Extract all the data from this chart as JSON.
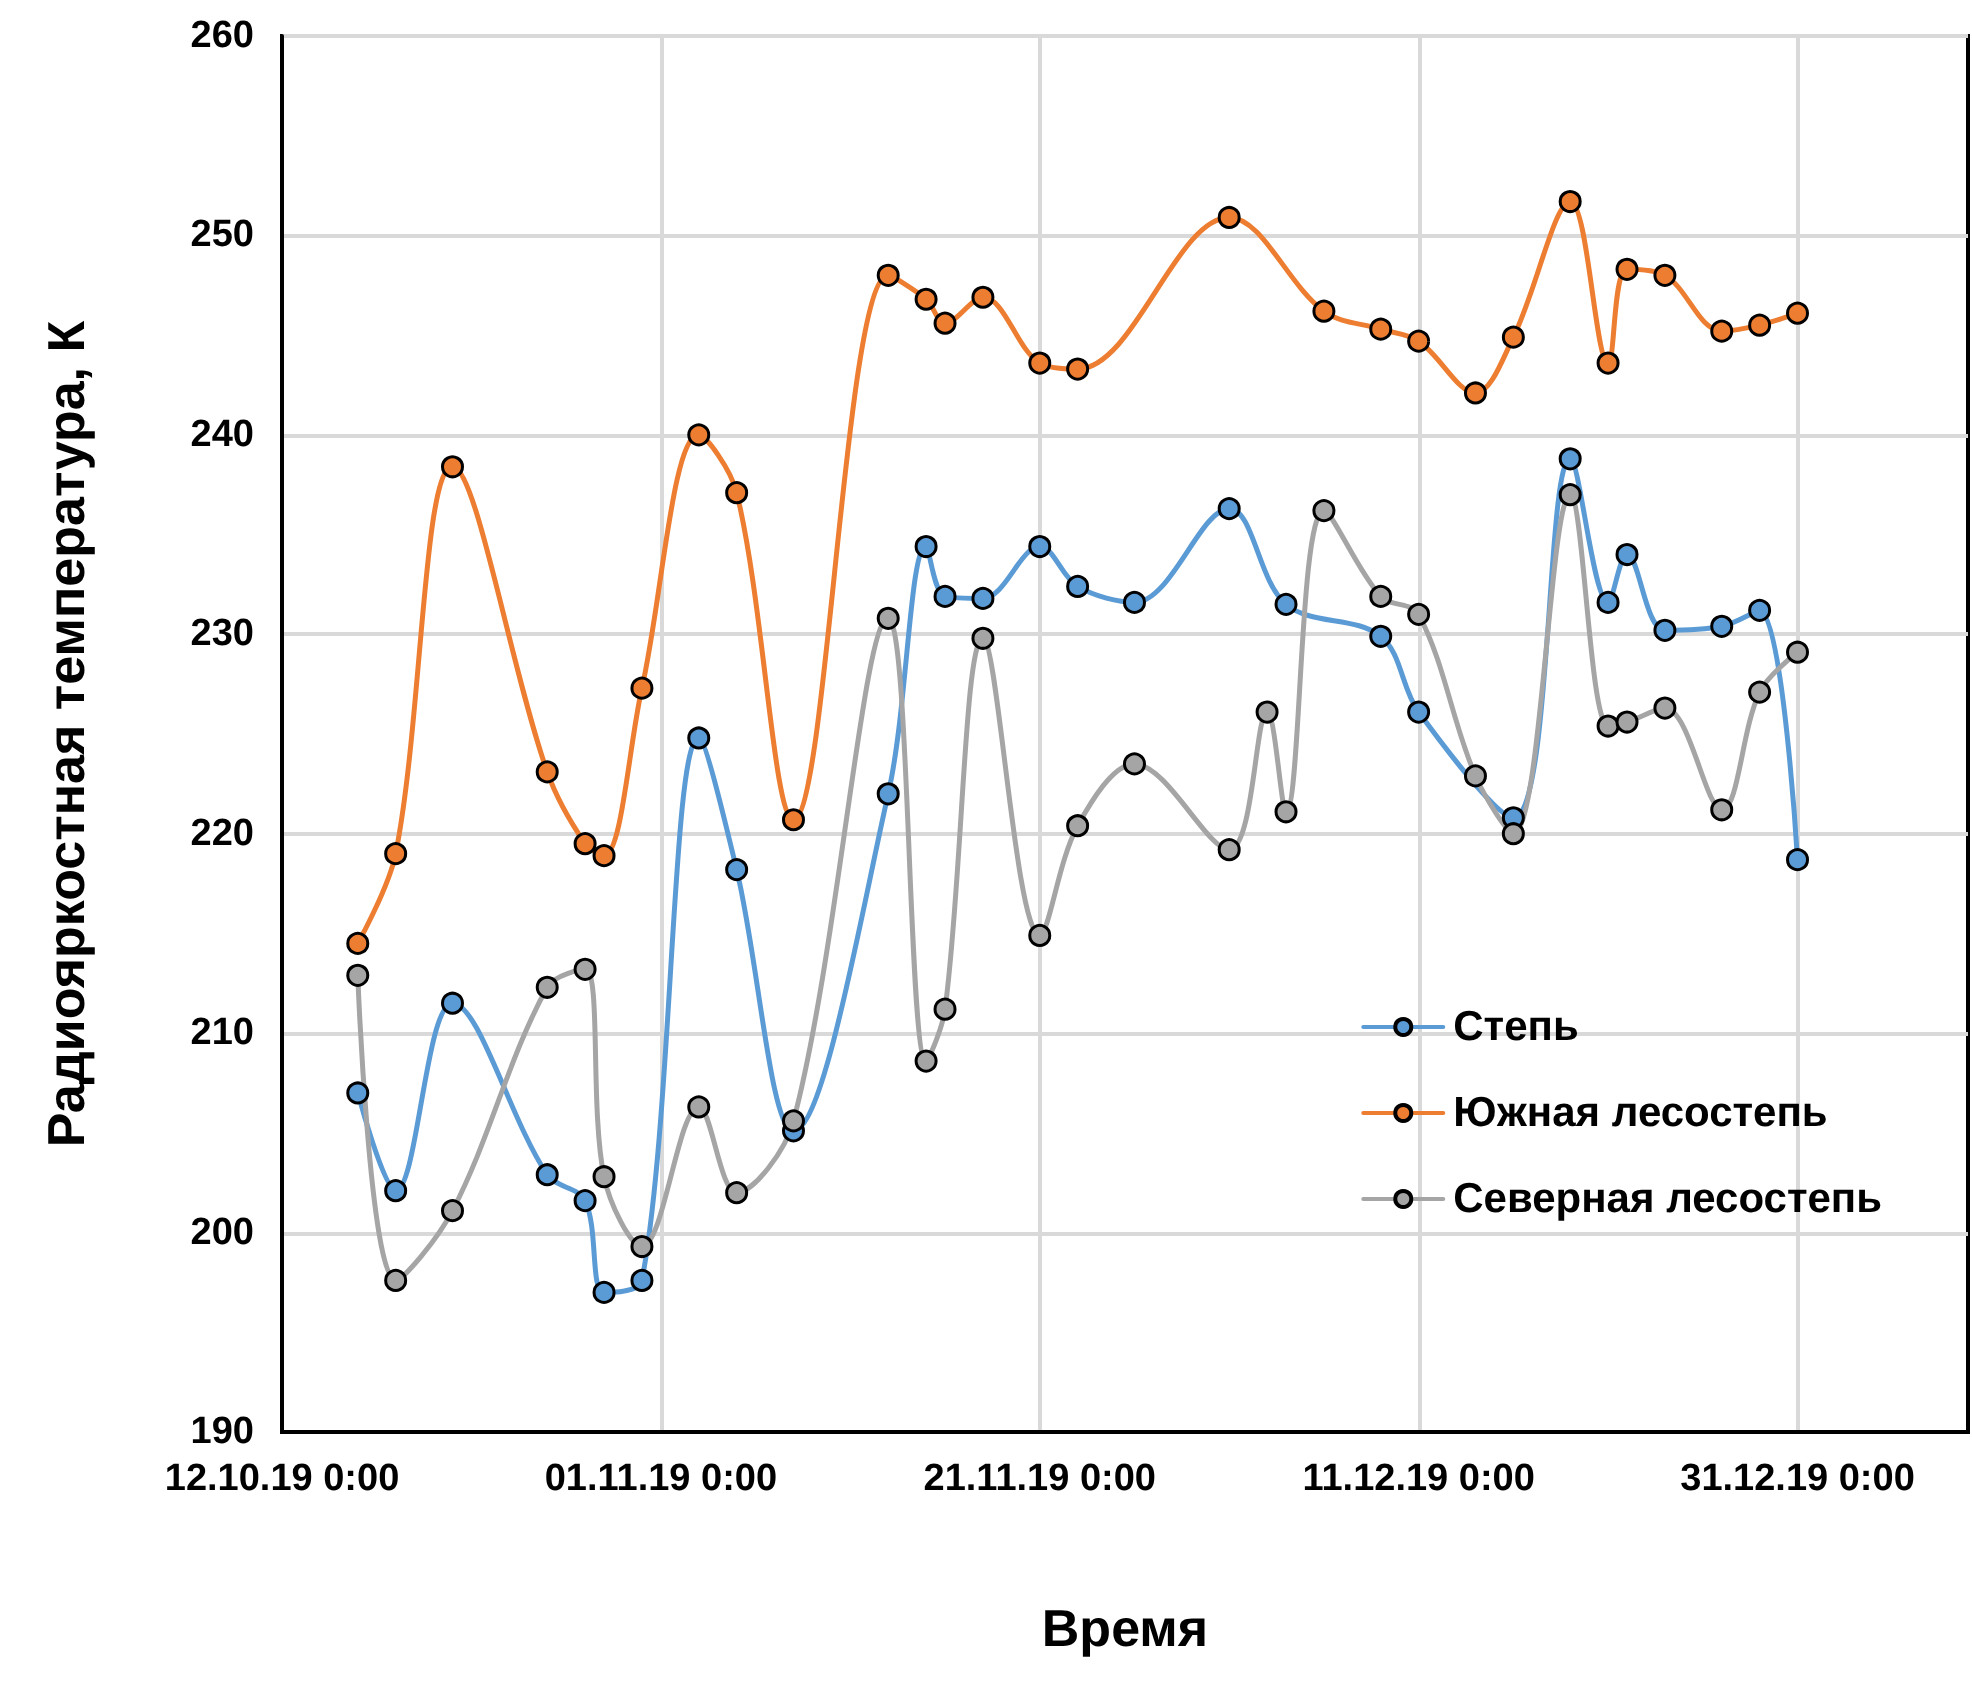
{
  "chart_data": {
    "type": "line",
    "xlabel": "Время",
    "ylabel": "Радиояркостная температура, К",
    "xlim": [
      "2019-10-12",
      "2020-01-09"
    ],
    "ylim": [
      190,
      260
    ],
    "yticks": [
      190,
      200,
      210,
      220,
      230,
      240,
      250,
      260
    ],
    "xticks": [
      {
        "value": "2019-10-12",
        "label": "12.10.19 0:00"
      },
      {
        "value": "2019-11-01",
        "label": "01.11.19 0:00"
      },
      {
        "value": "2019-11-21",
        "label": "21.11.19 0:00"
      },
      {
        "value": "2019-12-11",
        "label": "11.12.19 0:00"
      },
      {
        "value": "2019-12-31",
        "label": "31.12.19 0:00"
      }
    ],
    "grid": true,
    "legend": "right",
    "marker": "circle",
    "line_style": "solid",
    "series": [
      {
        "name": "Степь",
        "color": "#5b9bd5",
        "x": [
          "2019-10-16",
          "2019-10-18",
          "2019-10-21",
          "2019-10-26",
          "2019-10-28",
          "2019-10-29",
          "2019-10-31",
          "2019-11-03",
          "2019-11-05",
          "2019-11-08",
          "2019-11-13",
          "2019-11-15",
          "2019-11-16",
          "2019-11-18",
          "2019-11-21",
          "2019-11-23",
          "2019-11-26",
          "2019-12-01",
          "2019-12-04",
          "2019-12-09",
          "2019-12-11",
          "2019-12-16",
          "2019-12-19",
          "2019-12-21",
          "2019-12-22",
          "2019-12-24",
          "2019-12-27",
          "2019-12-29",
          "2019-12-31"
        ],
        "values": [
          207.0,
          202.1,
          211.5,
          202.9,
          201.6,
          197.0,
          197.6,
          224.8,
          218.2,
          205.1,
          222.0,
          234.4,
          231.9,
          231.8,
          234.4,
          232.4,
          231.6,
          236.3,
          231.5,
          229.9,
          226.1,
          220.8,
          238.8,
          231.6,
          234.0,
          230.2,
          230.4,
          231.2,
          218.7
        ]
      },
      {
        "name": "Южная лесостепь",
        "color": "#ed7d31",
        "x": [
          "2019-10-16",
          "2019-10-18",
          "2019-10-21",
          "2019-10-26",
          "2019-10-28",
          "2019-10-29",
          "2019-10-31",
          "2019-11-03",
          "2019-11-05",
          "2019-11-08",
          "2019-11-13",
          "2019-11-15",
          "2019-11-16",
          "2019-11-18",
          "2019-11-21",
          "2019-11-23",
          "2019-12-01",
          "2019-12-06",
          "2019-12-09",
          "2019-12-11",
          "2019-12-14",
          "2019-12-16",
          "2019-12-19",
          "2019-12-21",
          "2019-12-22",
          "2019-12-24",
          "2019-12-27",
          "2019-12-29",
          "2019-12-31"
        ],
        "values": [
          214.5,
          219.0,
          238.4,
          223.1,
          219.5,
          218.9,
          227.3,
          240.0,
          237.1,
          220.7,
          248.0,
          246.8,
          245.6,
          246.9,
          243.6,
          243.3,
          250.9,
          246.2,
          245.3,
          244.7,
          242.1,
          244.9,
          251.7,
          243.6,
          248.3,
          248.0,
          245.2,
          245.5,
          246.1
        ]
      },
      {
        "name": "Северная лесостепь",
        "color": "#a5a5a5",
        "x": [
          "2019-10-16",
          "2019-10-18",
          "2019-10-21",
          "2019-10-26",
          "2019-10-28",
          "2019-10-29",
          "2019-10-31",
          "2019-11-03",
          "2019-11-05",
          "2019-11-08",
          "2019-11-13",
          "2019-11-15",
          "2019-11-16",
          "2019-11-18",
          "2019-11-21",
          "2019-11-23",
          "2019-11-26",
          "2019-12-01",
          "2019-12-03",
          "2019-12-04",
          "2019-12-06",
          "2019-12-09",
          "2019-12-11",
          "2019-12-14",
          "2019-12-16",
          "2019-12-19",
          "2019-12-21",
          "2019-12-22",
          "2019-12-24",
          "2019-12-27",
          "2019-12-29",
          "2019-12-31"
        ],
        "values": [
          212.9,
          197.6,
          201.1,
          212.3,
          213.2,
          202.8,
          199.3,
          206.3,
          202.0,
          205.6,
          230.8,
          208.6,
          211.2,
          229.8,
          214.9,
          220.4,
          223.5,
          219.2,
          226.1,
          221.1,
          236.2,
          231.9,
          231.0,
          222.9,
          220.0,
          237.0,
          225.4,
          225.6,
          226.3,
          221.2,
          227.1,
          229.1
        ]
      }
    ]
  }
}
